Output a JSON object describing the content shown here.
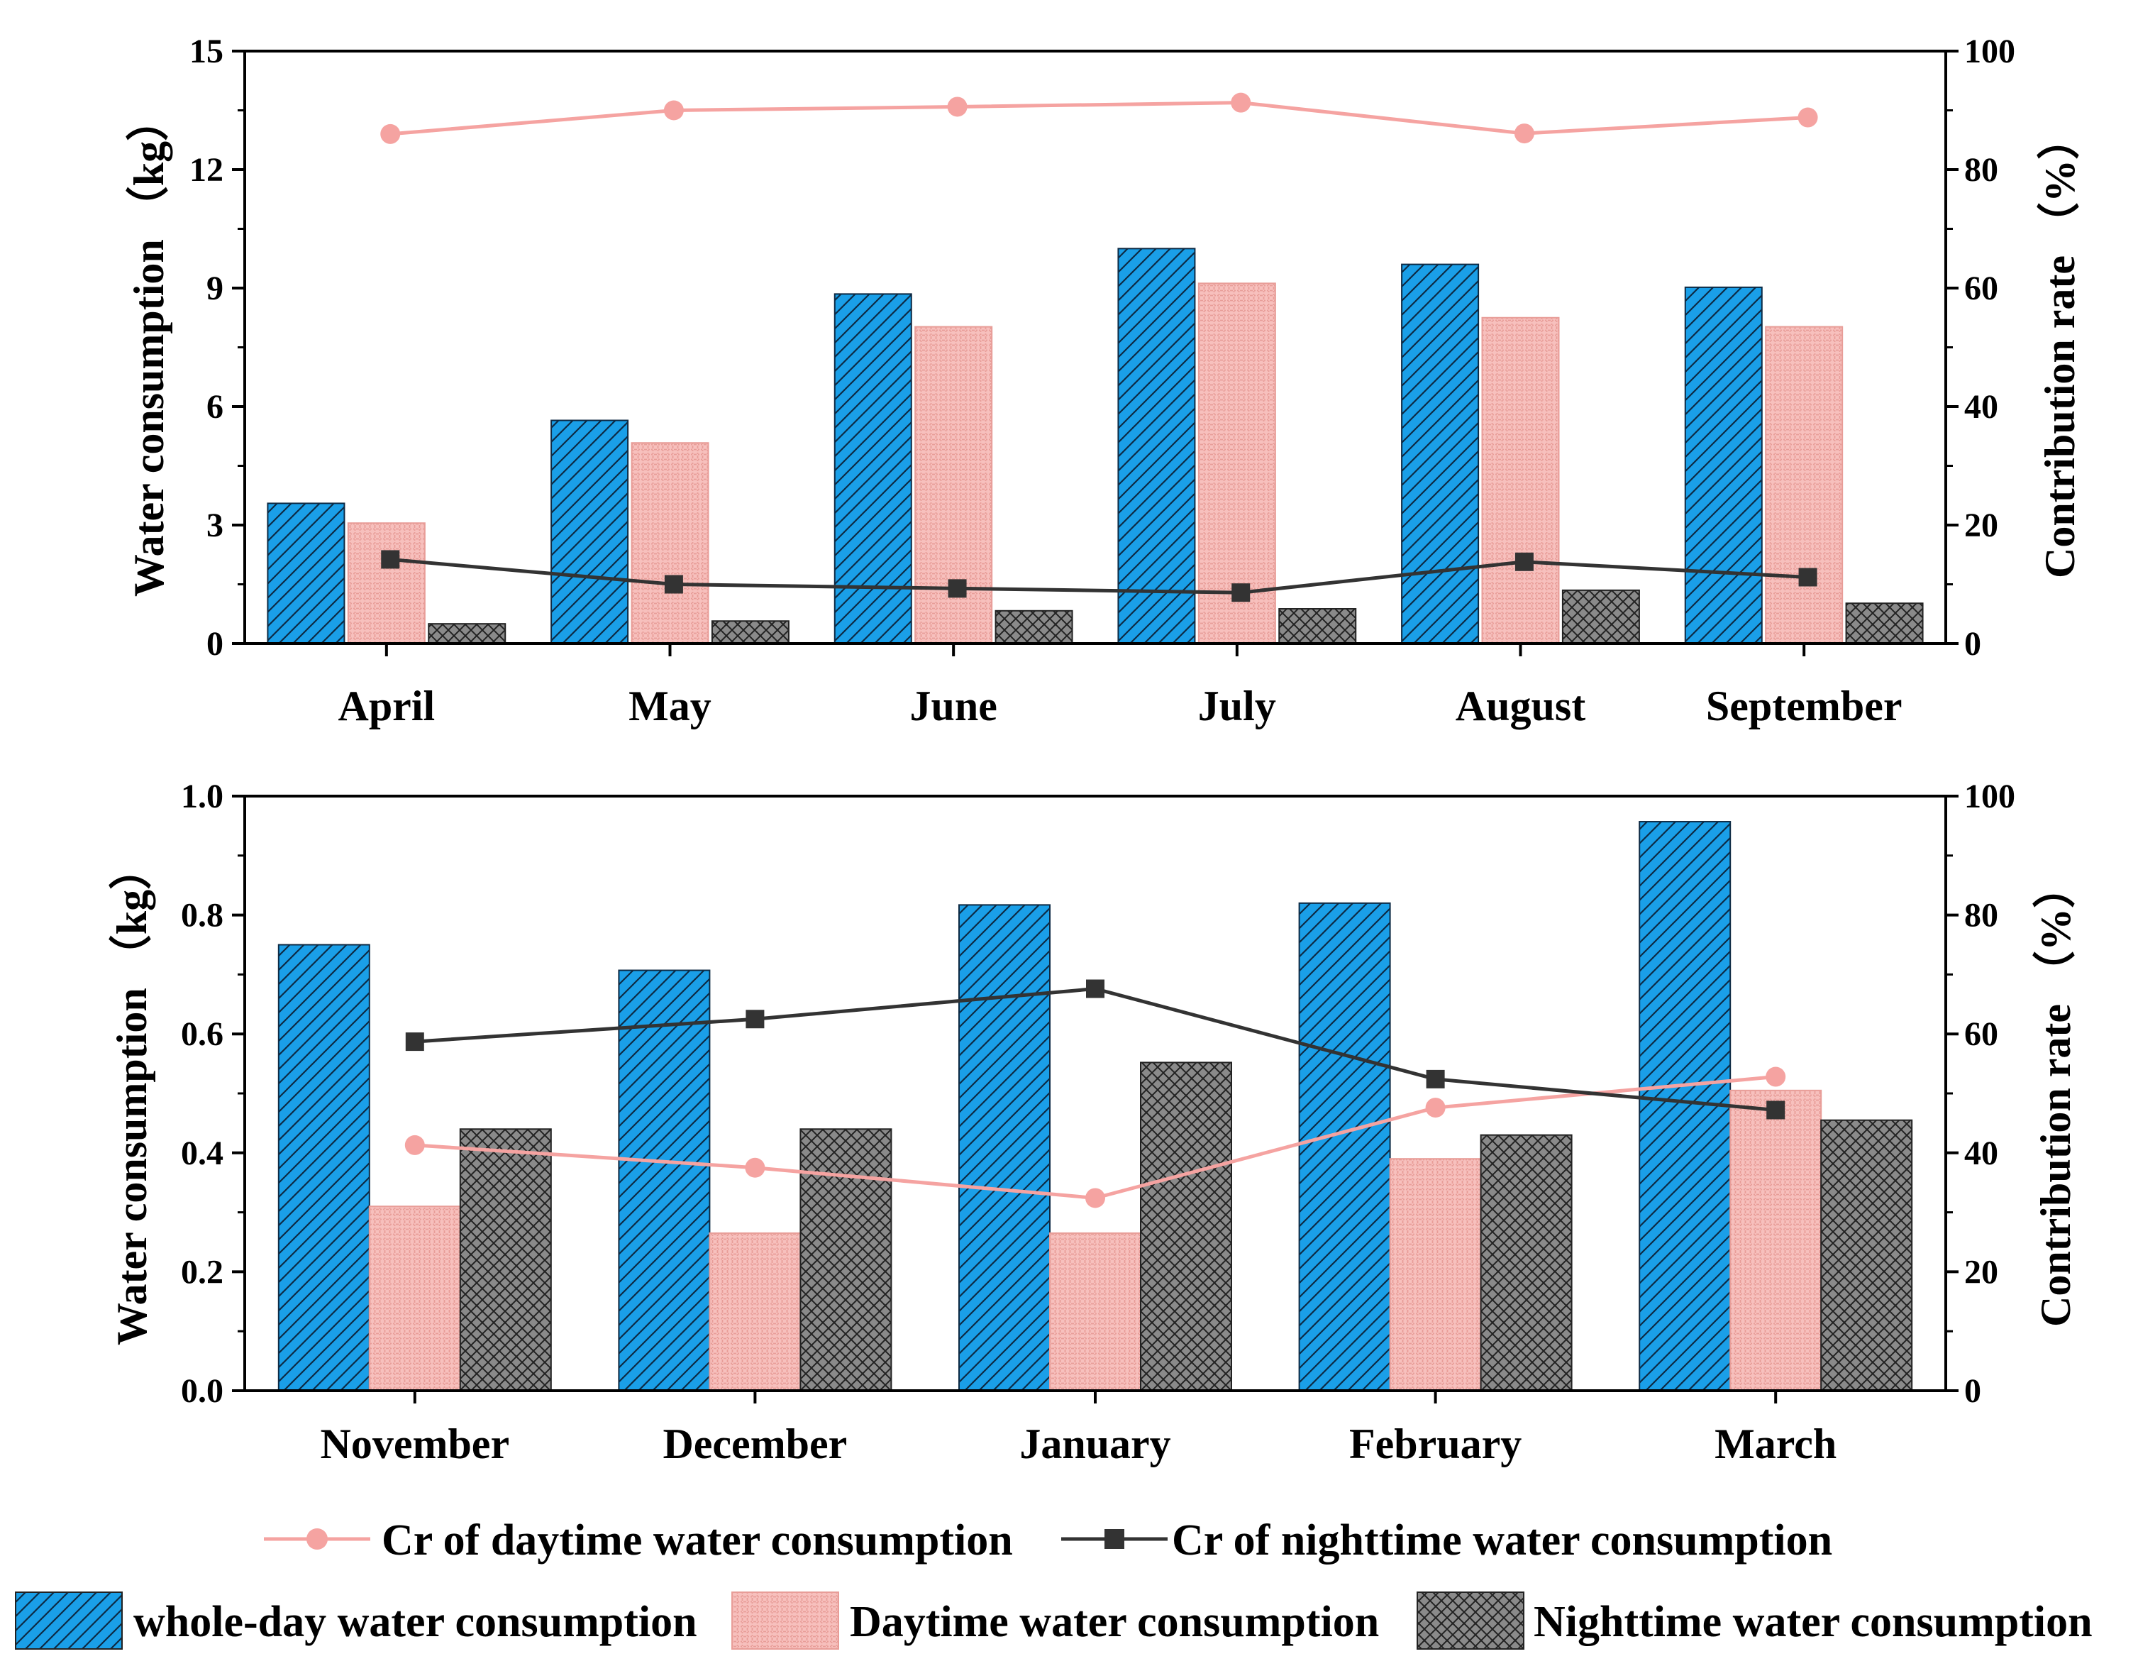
{
  "chart_data": [
    {
      "type": "bar",
      "categories": [
        "April",
        "May",
        "June",
        "July",
        "August",
        "September"
      ],
      "series": [
        {
          "name": "whole-day water consumption",
          "values": [
            3.55,
            5.65,
            8.85,
            10.0,
            9.6,
            9.02
          ],
          "axis": "left",
          "color": "#1a9fe8"
        },
        {
          "name": "Daytime water consumption",
          "values": [
            3.05,
            5.08,
            8.02,
            9.12,
            8.25,
            8.02
          ],
          "axis": "left",
          "color": "#f7c0bd"
        },
        {
          "name": "Nighttime water consumption",
          "values": [
            0.5,
            0.57,
            0.83,
            0.88,
            1.35,
            1.02
          ],
          "axis": "left",
          "color": "#858585"
        },
        {
          "name": "Cr of daytime water consumption",
          "values": [
            86.0,
            90.0,
            90.6,
            91.3,
            86.1,
            88.8
          ],
          "axis": "right",
          "color": "#f5a3a1"
        },
        {
          "name": "Cr of nighttime water consumption",
          "values": [
            14.2,
            10.0,
            9.3,
            8.6,
            13.8,
            11.2
          ],
          "axis": "right",
          "color": "#333333"
        }
      ],
      "ylabel": "Water consumption （kg）",
      "ylabel_right": "Contribution rate （%）",
      "ylim": [
        0,
        15
      ],
      "yticks": [
        "0",
        "3",
        "6",
        "9",
        "12",
        "15"
      ],
      "ylim_right": [
        0,
        100
      ],
      "yticks_right": [
        "0",
        "20",
        "40",
        "60",
        "80",
        "100"
      ]
    },
    {
      "type": "bar",
      "categories": [
        "November",
        "December",
        "January",
        "February",
        "March"
      ],
      "series": [
        {
          "name": "whole-day water consumption",
          "values": [
            0.75,
            0.707,
            0.817,
            0.82,
            0.957
          ],
          "axis": "left",
          "color": "#1a9fe8"
        },
        {
          "name": "Daytime water consumption",
          "values": [
            0.31,
            0.265,
            0.265,
            0.39,
            0.505
          ],
          "axis": "left",
          "color": "#f7c0bd"
        },
        {
          "name": "Nighttime water consumption",
          "values": [
            0.44,
            0.44,
            0.552,
            0.43,
            0.455
          ],
          "axis": "left",
          "color": "#858585"
        },
        {
          "name": "Cr of daytime water consumption",
          "values": [
            41.3,
            37.5,
            32.4,
            47.6,
            52.8
          ],
          "axis": "right",
          "color": "#f5a3a1"
        },
        {
          "name": "Cr of nighttime water consumption",
          "values": [
            58.7,
            62.5,
            67.6,
            52.4,
            47.2
          ],
          "axis": "right",
          "color": "#333333"
        }
      ],
      "ylabel": "Water consumption （kg）",
      "ylabel_right": "Contribution rate （%）",
      "ylim": [
        0,
        1.0
      ],
      "yticks": [
        "0.0",
        "0.2",
        "0.4",
        "0.6",
        "0.8",
        "1.0"
      ],
      "ylim_right": [
        0,
        100
      ],
      "yticks_right": [
        "0",
        "20",
        "40",
        "60",
        "80",
        "100"
      ]
    }
  ],
  "legend": {
    "line_items": [
      "Cr of daytime water consumption",
      "Cr of nighttime water consumption"
    ],
    "bar_items": [
      "whole-day water consumption",
      "Daytime water consumption",
      "Nighttime water consumption"
    ],
    "placement": "bottom"
  }
}
